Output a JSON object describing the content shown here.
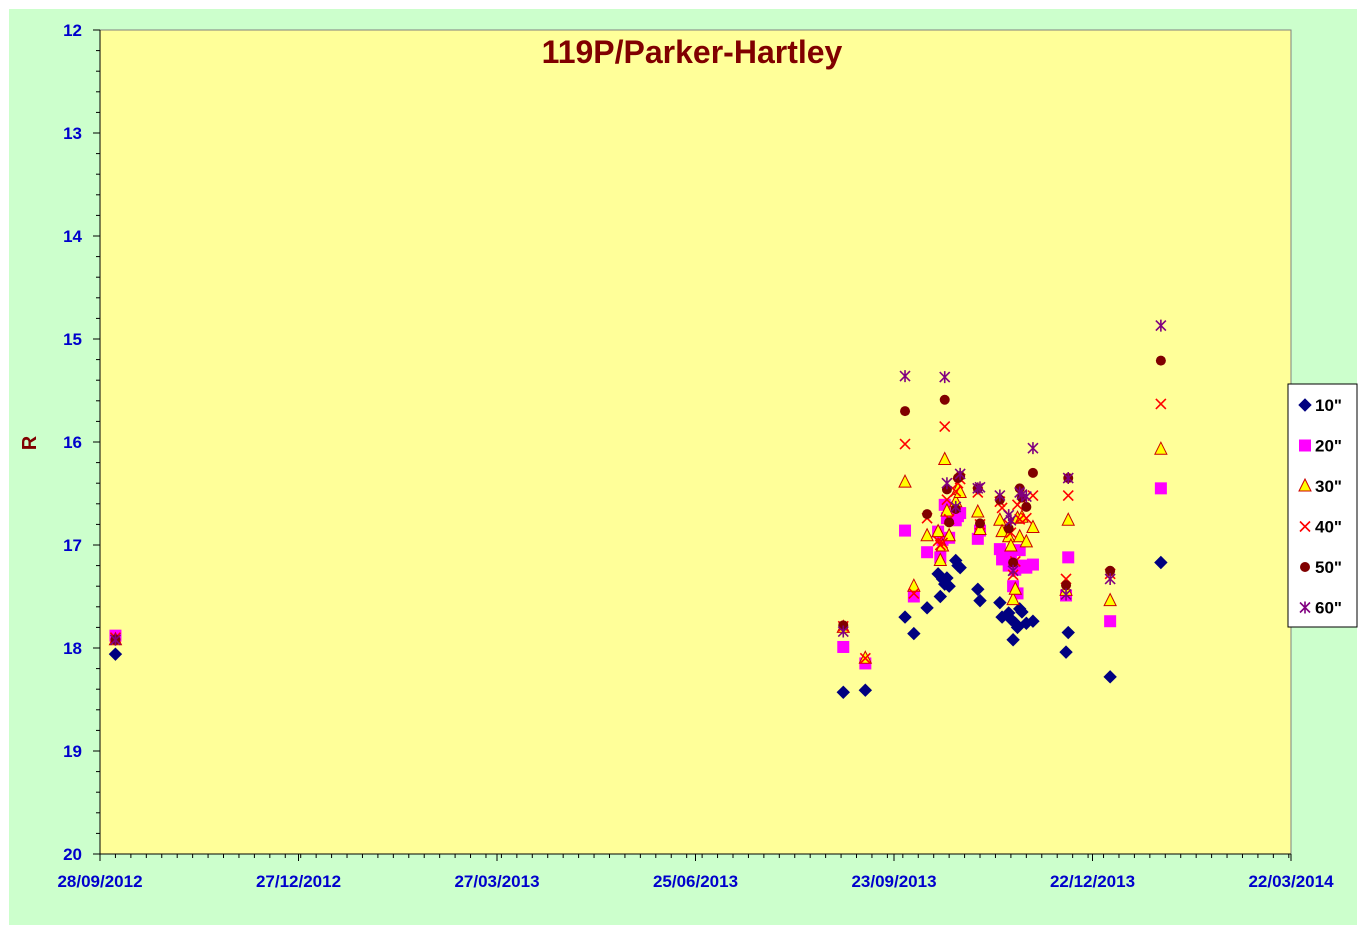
{
  "chart_data": {
    "type": "scatter",
    "title": "119P/Parker-Hartley",
    "xlabel": "",
    "ylabel": "R",
    "x_axis": {
      "type": "date",
      "min": "2012-09-28",
      "max": "2014-03-22",
      "tick_labels": [
        "28/09/2012",
        "27/12/2012",
        "27/03/2013",
        "25/06/2013",
        "23/09/2013",
        "22/12/2013",
        "22/03/2014"
      ]
    },
    "y_axis": {
      "reversed": true,
      "min": 12,
      "max": 20,
      "tick_labels": [
        "12",
        "13",
        "14",
        "15",
        "16",
        "17",
        "18",
        "19",
        "20"
      ]
    },
    "grid": false,
    "legend_position": "right",
    "colors": {
      "frame": "#ccffcc",
      "plot": "#ffff99",
      "ticks": "#0000cc",
      "title": "#800000"
    },
    "series": [
      {
        "name": "10\"",
        "marker": "diamond",
        "color": "#000080",
        "points": [
          [
            "2012-10-05",
            18.06
          ],
          [
            "2013-08-31",
            18.43
          ],
          [
            "2013-09-10",
            18.41
          ],
          [
            "2013-09-28",
            17.7
          ],
          [
            "2013-10-02",
            17.86
          ],
          [
            "2013-10-08",
            17.61
          ],
          [
            "2013-10-13",
            17.28
          ],
          [
            "2013-10-14",
            17.5
          ],
          [
            "2013-10-15",
            17.33
          ],
          [
            "2013-10-16",
            17.38
          ],
          [
            "2013-10-17",
            17.32
          ],
          [
            "2013-10-18",
            17.4
          ],
          [
            "2013-10-21",
            17.15
          ],
          [
            "2013-10-22",
            17.2
          ],
          [
            "2013-10-23",
            17.22
          ],
          [
            "2013-10-31",
            17.43
          ],
          [
            "2013-11-01",
            17.54
          ],
          [
            "2013-11-10",
            17.56
          ],
          [
            "2013-11-11",
            17.7
          ],
          [
            "2013-11-14",
            17.66
          ],
          [
            "2013-11-15",
            17.72
          ],
          [
            "2013-11-16",
            17.92
          ],
          [
            "2013-11-17",
            17.76
          ],
          [
            "2013-11-18",
            17.8
          ],
          [
            "2013-11-19",
            17.62
          ],
          [
            "2013-11-20",
            17.65
          ],
          [
            "2013-11-22",
            17.76
          ],
          [
            "2013-11-25",
            17.74
          ],
          [
            "2013-12-10",
            18.04
          ],
          [
            "2013-12-11",
            17.85
          ],
          [
            "2013-12-30",
            18.28
          ],
          [
            "2014-01-22",
            17.17
          ]
        ]
      },
      {
        "name": "20\"",
        "marker": "square",
        "color": "#ff00ff",
        "points": [
          [
            "2012-10-05",
            17.88
          ],
          [
            "2013-08-31",
            17.99
          ],
          [
            "2013-09-10",
            18.15
          ],
          [
            "2013-09-28",
            16.86
          ],
          [
            "2013-10-02",
            17.5
          ],
          [
            "2013-10-08",
            17.07
          ],
          [
            "2013-10-13",
            16.87
          ],
          [
            "2013-10-14",
            17.12
          ],
          [
            "2013-10-15",
            16.95
          ],
          [
            "2013-10-16",
            16.61
          ],
          [
            "2013-10-17",
            16.74
          ],
          [
            "2013-10-18",
            16.93
          ],
          [
            "2013-10-21",
            16.76
          ],
          [
            "2013-10-22",
            16.72
          ],
          [
            "2013-10-23",
            16.69
          ],
          [
            "2013-10-31",
            16.94
          ],
          [
            "2013-11-01",
            16.86
          ],
          [
            "2013-11-10",
            17.04
          ],
          [
            "2013-11-11",
            17.14
          ],
          [
            "2013-11-14",
            17.2
          ],
          [
            "2013-11-15",
            17.1
          ],
          [
            "2013-11-16",
            17.4
          ],
          [
            "2013-11-17",
            17.24
          ],
          [
            "2013-11-18",
            17.47
          ],
          [
            "2013-11-19",
            17.05
          ],
          [
            "2013-11-20",
            17.2
          ],
          [
            "2013-11-22",
            17.22
          ],
          [
            "2013-11-25",
            17.19
          ],
          [
            "2013-12-10",
            17.49
          ],
          [
            "2013-12-11",
            17.12
          ],
          [
            "2013-12-30",
            17.74
          ],
          [
            "2014-01-22",
            16.45
          ]
        ]
      },
      {
        "name": "30\"",
        "marker": "triangle",
        "color": "#ffff00",
        "edge_color": "#cc0000",
        "points": [
          [
            "2012-10-05",
            17.92
          ],
          [
            "2013-08-31",
            17.8
          ],
          [
            "2013-09-10",
            18.1
          ],
          [
            "2013-09-28",
            16.39
          ],
          [
            "2013-10-02",
            17.4
          ],
          [
            "2013-10-08",
            16.91
          ],
          [
            "2013-10-13",
            16.87
          ],
          [
            "2013-10-14",
            17.15
          ],
          [
            "2013-10-15",
            17.01
          ],
          [
            "2013-10-16",
            16.17
          ],
          [
            "2013-10-17",
            16.67
          ],
          [
            "2013-10-18",
            16.91
          ],
          [
            "2013-10-21",
            16.58
          ],
          [
            "2013-10-22",
            16.46
          ],
          [
            "2013-10-23",
            16.49
          ],
          [
            "2013-10-31",
            16.68
          ],
          [
            "2013-11-01",
            16.85
          ],
          [
            "2013-11-10",
            16.76
          ],
          [
            "2013-11-11",
            16.87
          ],
          [
            "2013-11-14",
            16.92
          ],
          [
            "2013-11-15",
            17.01
          ],
          [
            "2013-11-16",
            17.53
          ],
          [
            "2013-11-17",
            17.43
          ],
          [
            "2013-11-18",
            16.74
          ],
          [
            "2013-11-19",
            16.92
          ],
          [
            "2013-11-20",
            16.73
          ],
          [
            "2013-11-22",
            16.97
          ],
          [
            "2013-11-25",
            16.83
          ],
          [
            "2013-12-10",
            17.44
          ],
          [
            "2013-12-11",
            16.76
          ],
          [
            "2013-12-30",
            17.54
          ],
          [
            "2014-01-22",
            16.07
          ]
        ]
      },
      {
        "name": "40\"",
        "marker": "x",
        "color": "#ff0000",
        "points": [
          [
            "2012-10-05",
            17.9
          ],
          [
            "2013-08-31",
            17.79
          ],
          [
            "2013-09-10",
            18.1
          ],
          [
            "2013-09-28",
            16.02
          ],
          [
            "2013-10-02",
            17.47
          ],
          [
            "2013-10-08",
            16.74
          ],
          [
            "2013-10-13",
            16.96
          ],
          [
            "2013-10-14",
            17.0
          ],
          [
            "2013-10-15",
            16.98
          ],
          [
            "2013-10-16",
            15.85
          ],
          [
            "2013-10-17",
            16.56
          ],
          [
            "2013-10-18",
            16.75
          ],
          [
            "2013-10-21",
            16.48
          ],
          [
            "2013-10-22",
            16.4
          ],
          [
            "2013-10-23",
            16.36
          ],
          [
            "2013-10-31",
            16.49
          ],
          [
            "2013-11-01",
            16.8
          ],
          [
            "2013-11-10",
            16.58
          ],
          [
            "2013-11-11",
            16.64
          ],
          [
            "2013-11-14",
            16.8
          ],
          [
            "2013-11-15",
            16.88
          ],
          [
            "2013-11-16",
            17.29
          ],
          [
            "2013-11-17",
            17.16
          ],
          [
            "2013-11-18",
            16.61
          ],
          [
            "2013-11-19",
            16.75
          ],
          [
            "2013-11-20",
            16.56
          ],
          [
            "2013-11-22",
            16.74
          ],
          [
            "2013-11-25",
            16.52
          ],
          [
            "2013-12-10",
            17.33
          ],
          [
            "2013-12-11",
            16.52
          ],
          [
            "2013-12-30",
            17.28
          ],
          [
            "2014-01-22",
            15.63
          ]
        ]
      },
      {
        "name": "50\"",
        "marker": "circle",
        "color": "#800000",
        "points": [
          [
            "2012-10-05",
            17.92
          ],
          [
            "2013-08-31",
            17.78
          ],
          [
            "2013-09-28",
            15.7
          ],
          [
            "2013-10-08",
            16.7
          ],
          [
            "2013-10-16",
            15.59
          ],
          [
            "2013-10-17",
            16.46
          ],
          [
            "2013-10-18",
            16.78
          ],
          [
            "2013-10-21",
            16.65
          ],
          [
            "2013-10-22",
            16.35
          ],
          [
            "2013-10-23",
            16.33
          ],
          [
            "2013-10-31",
            16.45
          ],
          [
            "2013-11-01",
            16.79
          ],
          [
            "2013-11-10",
            16.56
          ],
          [
            "2013-11-14",
            16.84
          ],
          [
            "2013-11-16",
            17.17
          ],
          [
            "2013-11-19",
            16.45
          ],
          [
            "2013-11-20",
            16.54
          ],
          [
            "2013-11-22",
            16.63
          ],
          [
            "2013-11-25",
            16.3
          ],
          [
            "2013-12-10",
            17.39
          ],
          [
            "2013-12-11",
            16.35
          ],
          [
            "2013-12-30",
            17.25
          ],
          [
            "2014-01-22",
            15.21
          ]
        ]
      },
      {
        "name": "60\"",
        "marker": "star",
        "color": "#800080",
        "points": [
          [
            "2012-10-05",
            17.92
          ],
          [
            "2013-08-31",
            17.84
          ],
          [
            "2013-09-28",
            15.36
          ],
          [
            "2013-10-16",
            15.37
          ],
          [
            "2013-10-17",
            16.4
          ],
          [
            "2013-10-21",
            16.63
          ],
          [
            "2013-10-23",
            16.31
          ],
          [
            "2013-10-31",
            16.45
          ],
          [
            "2013-11-01",
            16.44
          ],
          [
            "2013-11-10",
            16.52
          ],
          [
            "2013-11-14",
            16.71
          ],
          [
            "2013-11-15",
            16.76
          ],
          [
            "2013-11-16",
            17.25
          ],
          [
            "2013-11-19",
            16.49
          ],
          [
            "2013-11-20",
            16.51
          ],
          [
            "2013-11-22",
            16.53
          ],
          [
            "2013-11-25",
            16.06
          ],
          [
            "2013-12-10",
            17.48
          ],
          [
            "2013-12-11",
            16.35
          ],
          [
            "2013-12-30",
            17.33
          ],
          [
            "2014-01-22",
            14.87
          ]
        ]
      }
    ]
  }
}
